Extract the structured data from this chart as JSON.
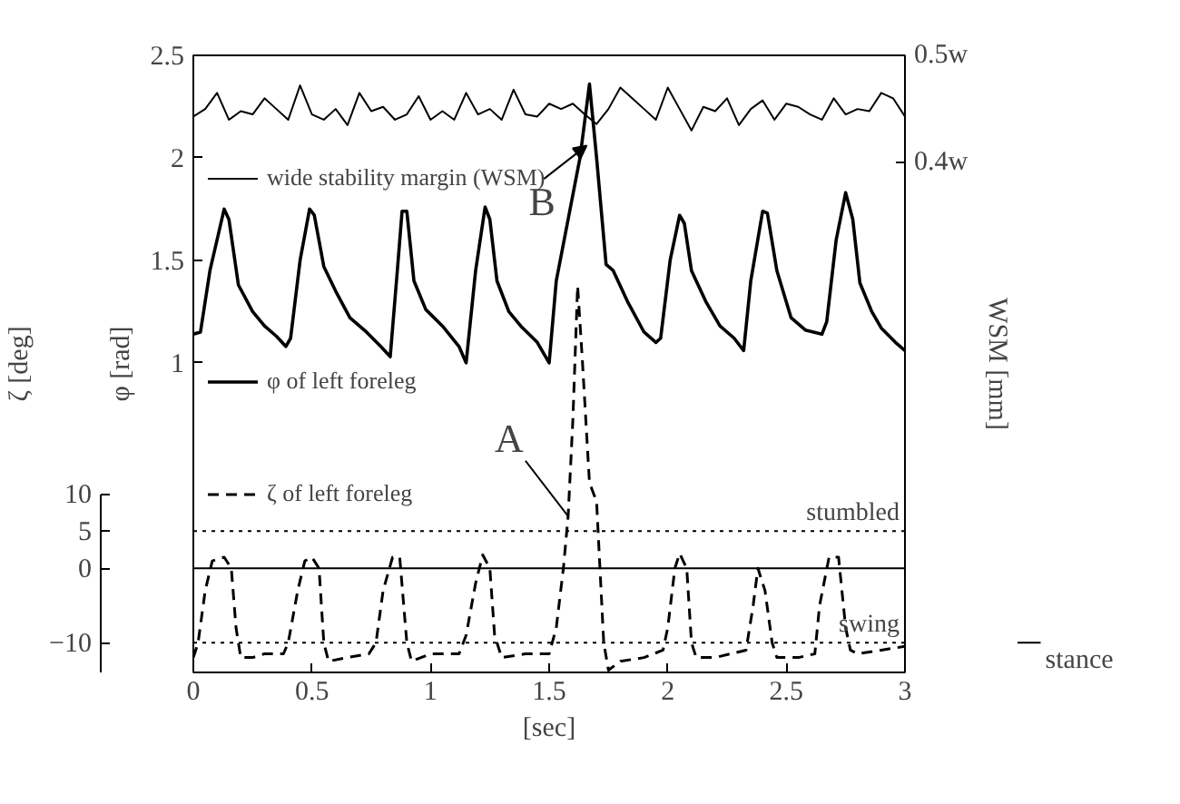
{
  "chart_data": {
    "type": "line",
    "xlabel": "[sec]",
    "ylabel": "φ [rad]",
    "y2label": "WSM [mm]",
    "y3label": "ζ [deg]",
    "xlim": [
      0,
      3
    ],
    "xticks": [
      0,
      0.5,
      1,
      1.5,
      2,
      2.5,
      3
    ],
    "ylim": [
      -0.51,
      2.5
    ],
    "yticks": [
      1,
      1.5,
      2,
      2.5
    ],
    "y2lim": [
      -0.075,
      0.5
    ],
    "y2ticks": [
      {
        "value": 0.4,
        "label": "0.4w"
      },
      {
        "value": 0.5,
        "label": "0.5w"
      }
    ],
    "y3lim": [
      -14,
      69
    ],
    "y3ticks": [
      -10,
      0,
      5,
      10
    ],
    "grid": false,
    "legend": "left",
    "series": [
      {
        "name": "wide stability margin (WSM)",
        "color": "#000000",
        "axis": "y2",
        "line_style": "solid",
        "x": [
          0,
          0.05,
          0.1,
          0.15,
          0.2,
          0.25,
          0.3,
          0.35,
          0.4,
          0.45,
          0.5,
          0.55,
          0.6,
          0.65,
          0.7,
          0.75,
          0.8,
          0.85,
          0.9,
          0.95,
          1.0,
          1.05,
          1.1,
          1.15,
          1.2,
          1.25,
          1.3,
          1.35,
          1.4,
          1.45,
          1.5,
          1.55,
          1.6,
          1.65,
          1.7,
          1.75,
          1.8,
          1.85,
          1.9,
          1.95,
          2.0,
          2.05,
          2.1,
          2.15,
          2.2,
          2.25,
          2.3,
          2.35,
          2.4,
          2.45,
          2.5,
          2.55,
          2.6,
          2.65,
          2.7,
          2.75,
          2.8,
          2.85,
          2.9,
          2.95,
          3.0
        ],
        "values": [
          0.443,
          0.45,
          0.465,
          0.44,
          0.448,
          0.445,
          0.46,
          0.45,
          0.44,
          0.472,
          0.445,
          0.44,
          0.45,
          0.435,
          0.465,
          0.448,
          0.452,
          0.44,
          0.445,
          0.462,
          0.44,
          0.448,
          0.44,
          0.465,
          0.445,
          0.45,
          0.44,
          0.468,
          0.445,
          0.443,
          0.455,
          0.45,
          0.455,
          0.445,
          0.436,
          0.45,
          0.47,
          0.46,
          0.45,
          0.44,
          0.47,
          0.45,
          0.43,
          0.452,
          0.448,
          0.46,
          0.435,
          0.45,
          0.458,
          0.44,
          0.455,
          0.452,
          0.445,
          0.44,
          0.46,
          0.445,
          0.45,
          0.448,
          0.465,
          0.46,
          0.443
        ]
      },
      {
        "name": "φ of left foreleg",
        "color": "#000000",
        "axis": "y",
        "line_style": "solid",
        "x": [
          0,
          0.03,
          0.07,
          0.13,
          0.15,
          0.19,
          0.25,
          0.3,
          0.35,
          0.39,
          0.41,
          0.45,
          0.49,
          0.51,
          0.55,
          0.6,
          0.66,
          0.73,
          0.79,
          0.83,
          0.86,
          0.88,
          0.9,
          0.93,
          0.98,
          1.05,
          1.12,
          1.15,
          1.19,
          1.23,
          1.25,
          1.28,
          1.33,
          1.38,
          1.45,
          1.5,
          1.53,
          1.58,
          1.63,
          1.67,
          1.7,
          1.74,
          1.77,
          1.83,
          1.9,
          1.95,
          1.97,
          2.01,
          2.05,
          2.07,
          2.1,
          2.16,
          2.22,
          2.28,
          2.32,
          2.35,
          2.4,
          2.42,
          2.46,
          2.52,
          2.58,
          2.65,
          2.67,
          2.71,
          2.75,
          2.78,
          2.81,
          2.86,
          2.9,
          2.96,
          3.0
        ],
        "values": [
          1.14,
          1.15,
          1.45,
          1.75,
          1.7,
          1.38,
          1.25,
          1.18,
          1.13,
          1.08,
          1.12,
          1.5,
          1.75,
          1.72,
          1.47,
          1.35,
          1.22,
          1.15,
          1.08,
          1.03,
          1.45,
          1.74,
          1.74,
          1.4,
          1.26,
          1.18,
          1.08,
          1.0,
          1.45,
          1.76,
          1.7,
          1.4,
          1.25,
          1.18,
          1.1,
          1.0,
          1.4,
          1.7,
          2.0,
          2.36,
          2.0,
          1.48,
          1.45,
          1.3,
          1.15,
          1.1,
          1.12,
          1.5,
          1.72,
          1.68,
          1.45,
          1.3,
          1.18,
          1.12,
          1.06,
          1.4,
          1.74,
          1.73,
          1.45,
          1.22,
          1.16,
          1.14,
          1.2,
          1.6,
          1.83,
          1.7,
          1.39,
          1.25,
          1.17,
          1.1,
          1.06
        ]
      },
      {
        "name": "ζ of left foreleg",
        "color": "#000000",
        "axis": "y3",
        "line_style": "dashed",
        "x": [
          0,
          0.02,
          0.05,
          0.08,
          0.13,
          0.16,
          0.18,
          0.2,
          0.25,
          0.3,
          0.38,
          0.4,
          0.44,
          0.47,
          0.5,
          0.53,
          0.55,
          0.57,
          0.65,
          0.74,
          0.77,
          0.8,
          0.84,
          0.87,
          0.9,
          0.92,
          1.0,
          1.12,
          1.15,
          1.19,
          1.22,
          1.25,
          1.27,
          1.3,
          1.4,
          1.5,
          1.53,
          1.56,
          1.58,
          1.6,
          1.62,
          1.64,
          1.67,
          1.7,
          1.73,
          1.75,
          1.8,
          1.9,
          1.98,
          2.0,
          2.03,
          2.05,
          2.08,
          2.1,
          2.12,
          2.2,
          2.33,
          2.36,
          2.38,
          2.41,
          2.44,
          2.46,
          2.55,
          2.62,
          2.64,
          2.68,
          2.72,
          2.75,
          2.77,
          2.8,
          2.9,
          3.0
        ],
        "values": [
          -12,
          -10,
          -3,
          1,
          1.5,
          0,
          -8,
          -12,
          -12,
          -11.5,
          -11.5,
          -10,
          -3,
          1,
          1.5,
          0,
          -10,
          -12.5,
          -12,
          -11.5,
          -10,
          -3,
          1.5,
          1.5,
          -10,
          -12.5,
          -11.5,
          -11.5,
          -9,
          -2,
          1.8,
          0,
          -9,
          -12,
          -11.5,
          -11.5,
          -8,
          0,
          7,
          20,
          38,
          28,
          11.5,
          9,
          -10,
          -13.7,
          -12.5,
          -12,
          -11,
          -8,
          0,
          2,
          0,
          -10,
          -12,
          -12,
          -11,
          -5,
          0,
          -3,
          -10,
          -12,
          -12,
          -11.5,
          -5,
          1.5,
          1.5,
          -8,
          -11,
          -11.5,
          -11,
          -10.5
        ]
      }
    ],
    "ref_lines": [
      {
        "axis": "y3",
        "value": 5,
        "label": "stumbled",
        "line_style": "dotted",
        "color": "#000000"
      },
      {
        "axis": "y3",
        "value": 0,
        "label": null,
        "line_style": "solid",
        "color": "#000000"
      },
      {
        "axis": "y3",
        "value": -10,
        "label": "swing",
        "line_style": "dotted",
        "color": "#000000"
      }
    ],
    "annotations": [
      {
        "text": "A",
        "x": 1.58
      },
      {
        "text": "B",
        "x": 1.67,
        "y": 2.36
      },
      "stance"
    ]
  }
}
